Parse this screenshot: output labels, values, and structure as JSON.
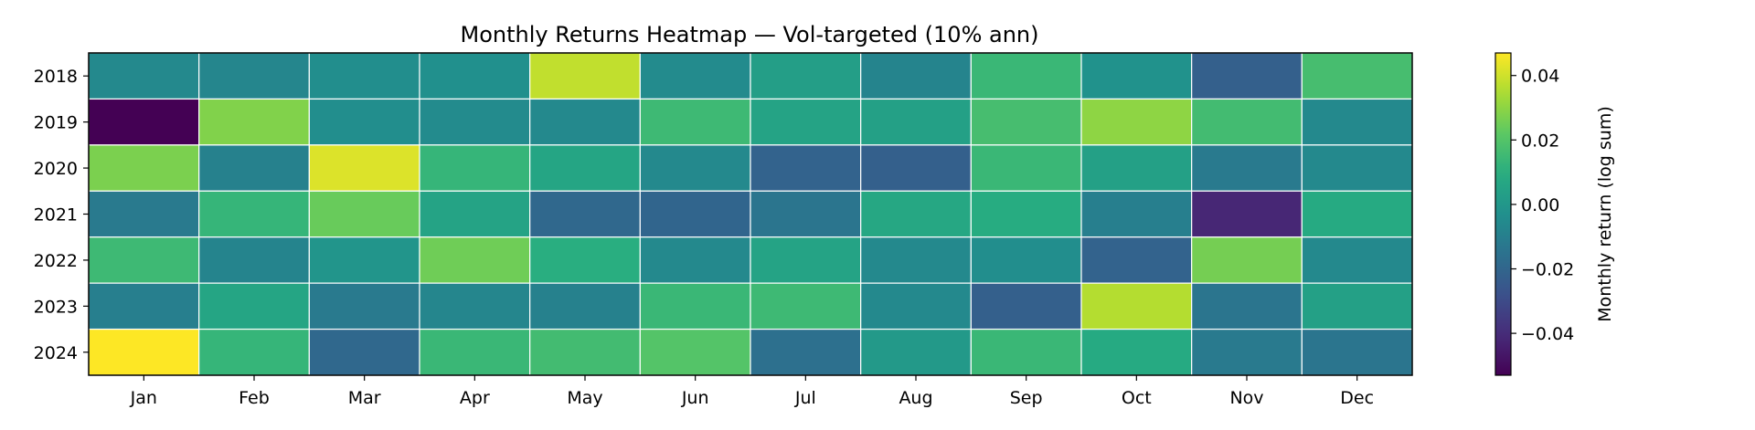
{
  "chart_data": {
    "type": "heatmap",
    "title": "Monthly Returns Heatmap — Vol-targeted (10% ann)",
    "xlabel": "",
    "ylabel": "",
    "colorbar_label": "Monthly return (log sum)",
    "colormap": "viridis",
    "color_range": [
      -0.053,
      0.047
    ],
    "colorbar_ticks": [
      -0.04,
      -0.02,
      0.0,
      0.02,
      0.04
    ],
    "colorbar_tick_labels": [
      "−0.04",
      "−0.02",
      "0.00",
      "0.02",
      "0.04"
    ],
    "x_categories": [
      "Jan",
      "Feb",
      "Mar",
      "Apr",
      "May",
      "Jun",
      "Jul",
      "Aug",
      "Sep",
      "Oct",
      "Nov",
      "Dec"
    ],
    "y_categories": [
      "2018",
      "2019",
      "2020",
      "2021",
      "2022",
      "2023",
      "2024"
    ],
    "values": [
      [
        -0.006,
        -0.007,
        -0.004,
        -0.003,
        0.038,
        -0.005,
        0.003,
        -0.008,
        0.014,
        -0.002,
        -0.022,
        0.017
      ],
      [
        -0.053,
        0.028,
        -0.004,
        -0.005,
        -0.006,
        0.015,
        0.005,
        0.004,
        0.017,
        0.03,
        0.016,
        -0.006
      ],
      [
        0.027,
        -0.009,
        0.042,
        0.013,
        0.006,
        -0.006,
        -0.021,
        -0.022,
        0.014,
        0.004,
        -0.012,
        -0.006
      ],
      [
        -0.012,
        0.013,
        0.024,
        0.005,
        -0.019,
        -0.02,
        -0.014,
        0.007,
        0.009,
        -0.01,
        -0.042,
        0.008
      ],
      [
        0.015,
        -0.008,
        -0.001,
        0.025,
        0.01,
        -0.006,
        0.005,
        -0.006,
        -0.004,
        -0.021,
        0.026,
        -0.006
      ],
      [
        -0.01,
        0.006,
        -0.012,
        -0.007,
        -0.009,
        0.014,
        0.015,
        -0.006,
        -0.022,
        0.036,
        -0.014,
        0.004
      ],
      [
        0.047,
        0.013,
        -0.019,
        0.014,
        0.016,
        0.02,
        -0.016,
        0.001,
        0.014,
        0.008,
        -0.012,
        -0.014
      ]
    ]
  }
}
